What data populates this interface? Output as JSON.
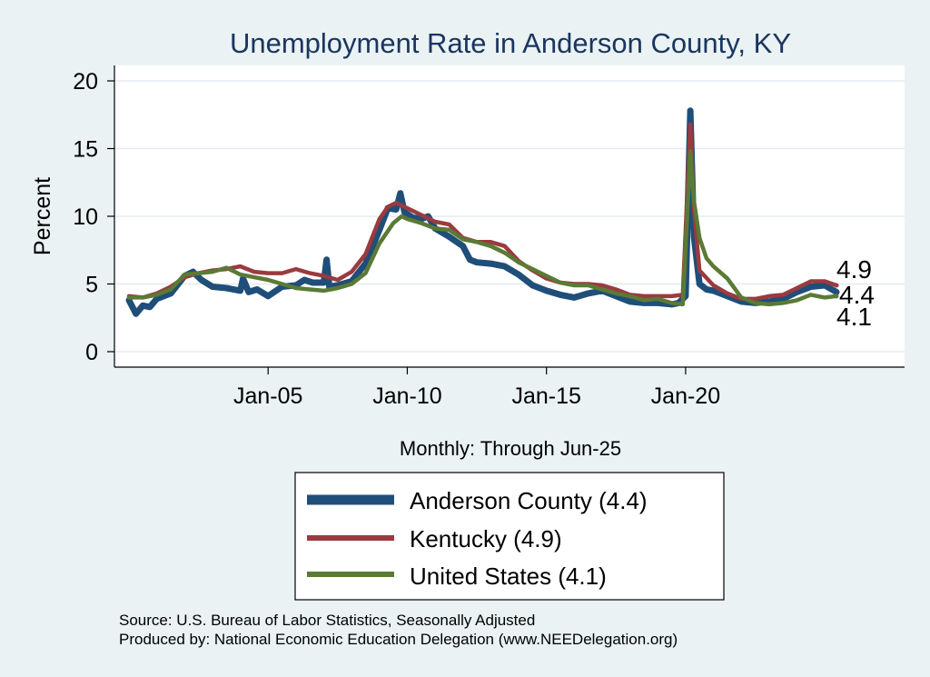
{
  "chart_data": {
    "type": "line",
    "title": "Unemployment Rate in Anderson  County, KY",
    "ylabel": "Percent",
    "xlabel": "Monthly: Through Jun-25",
    "ylim": [
      0,
      20
    ],
    "yticks": [
      0,
      5,
      10,
      15,
      20
    ],
    "x_start": 2000.0,
    "x_end": 2025.42,
    "xticks": [
      {
        "label": "Jan-05",
        "x": 2005.0
      },
      {
        "label": "Jan-10",
        "x": 2010.0
      },
      {
        "label": "Jan-15",
        "x": 2015.0
      },
      {
        "label": "Jan-20",
        "x": 2020.0
      }
    ],
    "series": [
      {
        "name": "Anderson  County",
        "legend_label": "Anderson  County (4.4)",
        "end_label": "4.4",
        "color": "#1f4e79",
        "points": [
          [
            2000.0,
            3.8
          ],
          [
            2000.25,
            2.8
          ],
          [
            2000.5,
            3.4
          ],
          [
            2000.75,
            3.3
          ],
          [
            2001.0,
            3.9
          ],
          [
            2001.5,
            4.3
          ],
          [
            2002.0,
            5.6
          ],
          [
            2002.3,
            5.9
          ],
          [
            2002.6,
            5.3
          ],
          [
            2003.0,
            4.8
          ],
          [
            2003.5,
            4.7
          ],
          [
            2004.0,
            4.5
          ],
          [
            2004.1,
            5.4
          ],
          [
            2004.3,
            4.4
          ],
          [
            2004.6,
            4.6
          ],
          [
            2005.0,
            4.1
          ],
          [
            2005.5,
            4.8
          ],
          [
            2006.0,
            4.9
          ],
          [
            2006.3,
            5.3
          ],
          [
            2006.6,
            5.1
          ],
          [
            2007.0,
            5.1
          ],
          [
            2007.1,
            6.8
          ],
          [
            2007.2,
            4.8
          ],
          [
            2007.5,
            4.9
          ],
          [
            2008.0,
            5.2
          ],
          [
            2008.5,
            6.5
          ],
          [
            2009.0,
            9.0
          ],
          [
            2009.3,
            10.6
          ],
          [
            2009.6,
            10.5
          ],
          [
            2009.75,
            11.7
          ],
          [
            2009.9,
            10.3
          ],
          [
            2010.2,
            9.9
          ],
          [
            2010.5,
            9.8
          ],
          [
            2010.75,
            10.0
          ],
          [
            2011.0,
            9.1
          ],
          [
            2011.5,
            8.5
          ],
          [
            2012.0,
            7.8
          ],
          [
            2012.25,
            6.8
          ],
          [
            2012.5,
            6.6
          ],
          [
            2013.0,
            6.5
          ],
          [
            2013.5,
            6.3
          ],
          [
            2014.0,
            5.7
          ],
          [
            2014.5,
            4.9
          ],
          [
            2015.0,
            4.5
          ],
          [
            2015.5,
            4.2
          ],
          [
            2016.0,
            4.0
          ],
          [
            2016.5,
            4.3
          ],
          [
            2017.0,
            4.5
          ],
          [
            2017.5,
            4.1
          ],
          [
            2018.0,
            3.7
          ],
          [
            2018.5,
            3.6
          ],
          [
            2019.0,
            3.6
          ],
          [
            2019.5,
            3.5
          ],
          [
            2019.75,
            3.6
          ],
          [
            2020.0,
            4.1
          ],
          [
            2020.17,
            17.8
          ],
          [
            2020.3,
            8.5
          ],
          [
            2020.5,
            5.0
          ],
          [
            2020.75,
            4.6
          ],
          [
            2021.0,
            4.5
          ],
          [
            2021.5,
            4.1
          ],
          [
            2022.0,
            3.7
          ],
          [
            2022.5,
            3.6
          ],
          [
            2023.0,
            3.7
          ],
          [
            2023.5,
            3.9
          ],
          [
            2024.0,
            4.4
          ],
          [
            2024.5,
            4.8
          ],
          [
            2025.0,
            4.9
          ],
          [
            2025.42,
            4.4
          ]
        ]
      },
      {
        "name": "Kentucky",
        "legend_label": "Kentucky (4.9)",
        "end_label": "4.9",
        "color": "#9b3a3f",
        "points": [
          [
            2000.0,
            4.1
          ],
          [
            2000.5,
            4.0
          ],
          [
            2001.0,
            4.3
          ],
          [
            2001.5,
            4.8
          ],
          [
            2002.0,
            5.5
          ],
          [
            2002.5,
            5.8
          ],
          [
            2003.0,
            6.0
          ],
          [
            2003.5,
            6.1
          ],
          [
            2004.0,
            6.3
          ],
          [
            2004.5,
            5.9
          ],
          [
            2005.0,
            5.8
          ],
          [
            2005.5,
            5.8
          ],
          [
            2006.0,
            6.1
          ],
          [
            2006.5,
            5.8
          ],
          [
            2007.0,
            5.6
          ],
          [
            2007.5,
            5.3
          ],
          [
            2008.0,
            5.9
          ],
          [
            2008.5,
            7.2
          ],
          [
            2009.0,
            9.8
          ],
          [
            2009.3,
            10.7
          ],
          [
            2009.6,
            11.0
          ],
          [
            2010.0,
            10.6
          ],
          [
            2010.5,
            10.1
          ],
          [
            2011.0,
            9.6
          ],
          [
            2011.5,
            9.4
          ],
          [
            2012.0,
            8.4
          ],
          [
            2012.5,
            8.1
          ],
          [
            2013.0,
            8.1
          ],
          [
            2013.5,
            7.8
          ],
          [
            2014.0,
            6.7
          ],
          [
            2014.5,
            6.0
          ],
          [
            2015.0,
            5.4
          ],
          [
            2015.5,
            5.1
          ],
          [
            2016.0,
            5.0
          ],
          [
            2016.5,
            5.0
          ],
          [
            2017.0,
            4.9
          ],
          [
            2017.5,
            4.6
          ],
          [
            2018.0,
            4.2
          ],
          [
            2018.5,
            4.1
          ],
          [
            2019.0,
            4.1
          ],
          [
            2019.5,
            4.1
          ],
          [
            2019.9,
            4.2
          ],
          [
            2020.17,
            16.8
          ],
          [
            2020.3,
            10.5
          ],
          [
            2020.5,
            6.0
          ],
          [
            2021.0,
            4.9
          ],
          [
            2021.5,
            4.3
          ],
          [
            2022.0,
            3.9
          ],
          [
            2022.5,
            3.9
          ],
          [
            2023.0,
            4.1
          ],
          [
            2023.5,
            4.2
          ],
          [
            2024.0,
            4.7
          ],
          [
            2024.5,
            5.2
          ],
          [
            2025.0,
            5.2
          ],
          [
            2025.42,
            4.9
          ]
        ]
      },
      {
        "name": "United States",
        "legend_label": "United States (4.1)",
        "end_label": "4.1",
        "color": "#5a7a35",
        "points": [
          [
            2000.0,
            4.0
          ],
          [
            2000.5,
            4.0
          ],
          [
            2001.0,
            4.2
          ],
          [
            2001.5,
            4.6
          ],
          [
            2002.0,
            5.7
          ],
          [
            2002.5,
            5.8
          ],
          [
            2003.0,
            5.9
          ],
          [
            2003.5,
            6.2
          ],
          [
            2004.0,
            5.7
          ],
          [
            2004.5,
            5.5
          ],
          [
            2005.0,
            5.3
          ],
          [
            2005.5,
            5.0
          ],
          [
            2006.0,
            4.7
          ],
          [
            2006.5,
            4.6
          ],
          [
            2007.0,
            4.5
          ],
          [
            2007.5,
            4.7
          ],
          [
            2008.0,
            5.0
          ],
          [
            2008.5,
            5.8
          ],
          [
            2009.0,
            8.0
          ],
          [
            2009.5,
            9.5
          ],
          [
            2009.8,
            10.0
          ],
          [
            2010.0,
            9.8
          ],
          [
            2010.5,
            9.5
          ],
          [
            2011.0,
            9.1
          ],
          [
            2011.5,
            9.0
          ],
          [
            2012.0,
            8.3
          ],
          [
            2012.5,
            8.1
          ],
          [
            2013.0,
            7.8
          ],
          [
            2013.5,
            7.3
          ],
          [
            2014.0,
            6.6
          ],
          [
            2014.5,
            6.1
          ],
          [
            2015.0,
            5.6
          ],
          [
            2015.5,
            5.1
          ],
          [
            2016.0,
            4.9
          ],
          [
            2016.5,
            4.9
          ],
          [
            2017.0,
            4.6
          ],
          [
            2017.5,
            4.3
          ],
          [
            2018.0,
            4.1
          ],
          [
            2018.5,
            3.8
          ],
          [
            2019.0,
            3.9
          ],
          [
            2019.5,
            3.6
          ],
          [
            2019.9,
            3.5
          ],
          [
            2020.17,
            14.8
          ],
          [
            2020.3,
            11.1
          ],
          [
            2020.5,
            8.4
          ],
          [
            2020.75,
            6.9
          ],
          [
            2021.0,
            6.3
          ],
          [
            2021.5,
            5.4
          ],
          [
            2022.0,
            4.0
          ],
          [
            2022.5,
            3.6
          ],
          [
            2023.0,
            3.5
          ],
          [
            2023.5,
            3.6
          ],
          [
            2024.0,
            3.8
          ],
          [
            2024.5,
            4.2
          ],
          [
            2025.0,
            4.0
          ],
          [
            2025.42,
            4.1
          ]
        ]
      }
    ]
  },
  "source_lines": [
    "Source: U.S. Bureau of Labor Statistics, Seasonally Adjusted",
    "Produced by: National Economic Education Delegation (www.NEEDelegation.org)"
  ]
}
